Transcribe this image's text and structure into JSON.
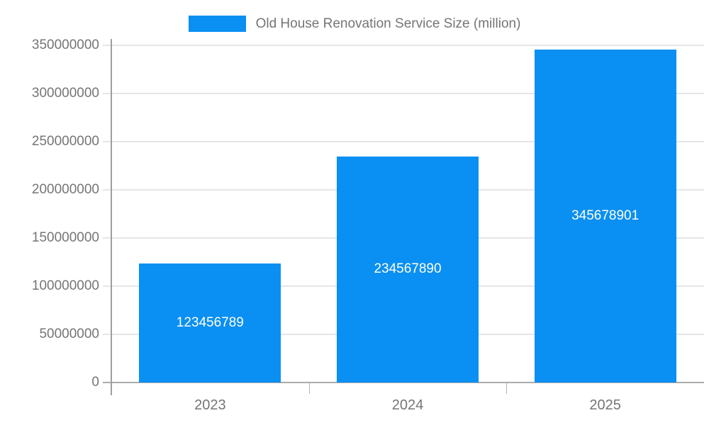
{
  "legend": {
    "label": "Old House Renovation Service Size (million)",
    "swatch_color": "#0A8FF2"
  },
  "chart_data": {
    "type": "bar",
    "title": "Old House Renovation Service Size (million)",
    "categories": [
      "2023",
      "2024",
      "2025"
    ],
    "values": [
      123456789,
      234567890,
      345678901
    ],
    "bar_labels": [
      "123456789",
      "234567890",
      "345678901"
    ],
    "xlabel": "",
    "ylabel": "",
    "ylim": [
      0,
      350000000
    ],
    "ytick_step": 50000000,
    "ytick_labels": [
      "0",
      "50000000",
      "100000000",
      "150000000",
      "200000000",
      "250000000",
      "300000000",
      "350000000"
    ],
    "grid": true,
    "legend_position": "top",
    "colors": {
      "bar": "#0A8FF2",
      "bar_label_text": "#ffffff",
      "axis_text": "#757575",
      "axis_line": "#9e9e9e",
      "baseline": "#ababab",
      "gridline": "#e6e6e6",
      "boundary_tick": "#b3b3b3",
      "legend_text": "#757575"
    }
  }
}
